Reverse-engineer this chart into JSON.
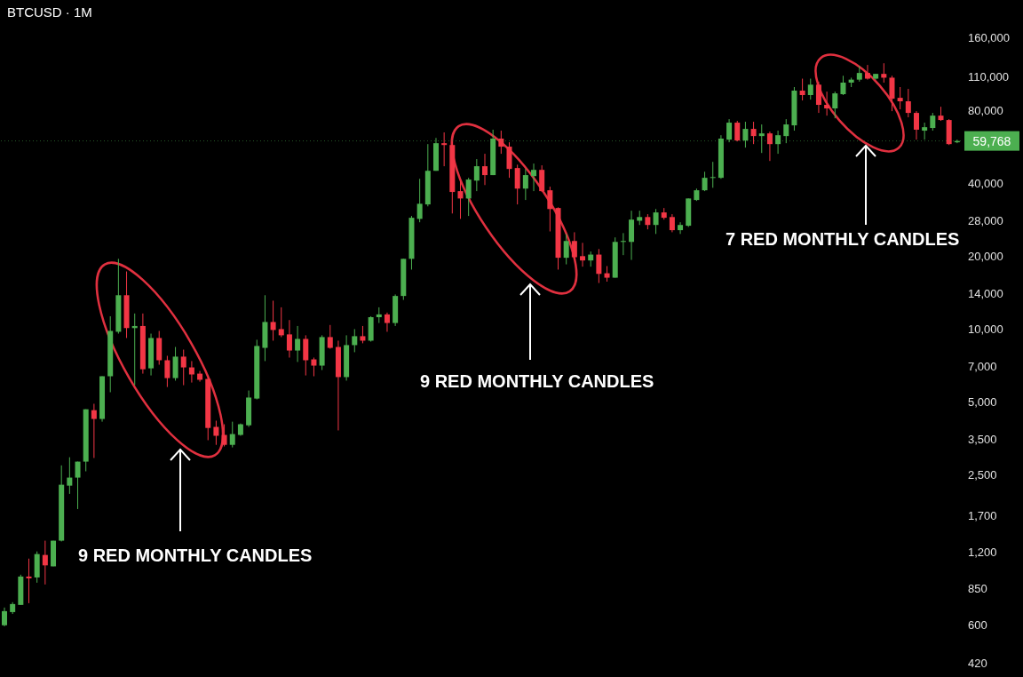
{
  "chart_data": {
    "type": "candlestick",
    "title": "BTCUSD · 1M",
    "annotations": [
      "9 RED MONTHLY CANDLES",
      "9 RED MONTHLY CANDLES",
      "7 RED MONTHLY CANDLES"
    ],
    "categories": [
      null,
      null,
      null,
      null,
      null,
      null,
      null,
      null,
      null,
      null,
      null,
      null,
      null,
      null,
      null,
      null,
      null,
      null,
      null,
      null,
      null,
      null,
      null,
      null,
      null,
      null,
      null,
      null,
      null,
      null,
      null,
      null,
      null,
      null,
      null,
      null,
      null,
      null,
      null,
      null,
      null,
      null,
      null,
      null,
      null,
      null,
      null,
      null,
      null,
      null,
      null,
      null,
      null,
      null,
      null,
      null,
      null,
      null,
      null,
      null,
      null,
      null,
      null,
      null,
      null,
      null,
      null,
      null,
      null,
      null,
      null,
      null,
      null,
      null,
      null,
      null,
      null,
      null,
      null,
      null,
      null,
      null,
      null,
      null,
      null,
      null,
      null,
      null,
      null,
      null,
      null,
      null,
      null,
      null,
      null,
      null,
      null,
      null,
      null,
      null,
      null,
      null,
      null,
      null,
      null,
      null,
      null,
      null,
      null,
      null,
      null,
      null,
      null,
      null,
      null,
      null,
      null,
      null
    ],
    "ohlc": [
      [
        600,
        710,
        594,
        686
      ],
      [
        680,
        747,
        668,
        734
      ],
      [
        728,
        970,
        728,
        953
      ],
      [
        953,
        1130,
        740,
        937
      ],
      [
        945,
        1210,
        899,
        1180
      ],
      [
        1170,
        1340,
        884,
        1060
      ],
      [
        1050,
        1340,
        1050,
        1340
      ],
      [
        1340,
        2740,
        1330,
        2280
      ],
      [
        2260,
        2960,
        2090,
        2440
      ],
      [
        2440,
        2840,
        1810,
        2840
      ],
      [
        2840,
        4670,
        2590,
        4670
      ],
      [
        4630,
        4920,
        2940,
        4260
      ],
      [
        4260,
        6390,
        4150,
        6390
      ],
      [
        6390,
        11300,
        5490,
        9830
      ],
      [
        9750,
        19500,
        9580,
        13800
      ],
      [
        13800,
        17300,
        9190,
        10100
      ],
      [
        10100,
        11600,
        5870,
        10300
      ],
      [
        10300,
        11600,
        6550,
        6830
      ],
      [
        6890,
        9580,
        6440,
        9190
      ],
      [
        9190,
        9830,
        7130,
        7440
      ],
      [
        7440,
        7760,
        5770,
        6280
      ],
      [
        6280,
        8440,
        6130,
        7700
      ],
      [
        7700,
        8230,
        5870,
        6950
      ],
      [
        6950,
        7380,
        6020,
        6500
      ],
      [
        6550,
        6720,
        6070,
        6180
      ],
      [
        6230,
        6440,
        3480,
        3910
      ],
      [
        3950,
        4190,
        3330,
        3630
      ],
      [
        3660,
        4050,
        3280,
        3330
      ],
      [
        3330,
        4150,
        3250,
        3690
      ],
      [
        3660,
        4080,
        3630,
        4050
      ],
      [
        4010,
        5580,
        3950,
        5220
      ],
      [
        5170,
        9040,
        5130,
        8520
      ],
      [
        8370,
        13800,
        7380,
        10700
      ],
      [
        10700,
        13100,
        8960,
        9920
      ],
      [
        10000,
        12300,
        9270,
        9430
      ],
      [
        9510,
        10900,
        7630,
        8160
      ],
      [
        8160,
        10300,
        7320,
        9110
      ],
      [
        9110,
        9430,
        6440,
        7440
      ],
      [
        7500,
        7630,
        6390,
        7070
      ],
      [
        7070,
        9430,
        6780,
        9270
      ],
      [
        9270,
        10400,
        8300,
        8370
      ],
      [
        8440,
        8960,
        3820,
        6340
      ],
      [
        6340,
        9430,
        6130,
        8590
      ],
      [
        8590,
        10000,
        8030,
        9350
      ],
      [
        9350,
        10300,
        8740,
        8960
      ],
      [
        8960,
        11300,
        8880,
        11200
      ],
      [
        11200,
        12300,
        10600,
        11500
      ],
      [
        11500,
        11700,
        9750,
        10600
      ],
      [
        10600,
        13900,
        10300,
        13700
      ],
      [
        13700,
        19500,
        13200,
        19500
      ],
      [
        19500,
        29300,
        17600,
        28800
      ],
      [
        28500,
        41700,
        27600,
        32900
      ],
      [
        32700,
        58000,
        32100,
        45000
      ],
      [
        45000,
        61500,
        45000,
        58500
      ],
      [
        58500,
        64800,
        47000,
        57500
      ],
      [
        57500,
        59500,
        30000,
        36800
      ],
      [
        37100,
        41000,
        28500,
        34600
      ],
      [
        34600,
        42100,
        29300,
        41400
      ],
      [
        41000,
        50300,
        37100,
        47000
      ],
      [
        47000,
        52900,
        39300,
        43200
      ],
      [
        43200,
        66500,
        43200,
        61100
      ],
      [
        61100,
        65900,
        52900,
        56600
      ],
      [
        56600,
        59000,
        42100,
        45800
      ],
      [
        46200,
        47700,
        32700,
        38000
      ],
      [
        38000,
        45800,
        34100,
        43200
      ],
      [
        42800,
        48200,
        37100,
        45400
      ],
      [
        45400,
        47400,
        36800,
        37100
      ],
      [
        37400,
        38700,
        25300,
        31300
      ],
      [
        31600,
        31800,
        17600,
        19700
      ],
      [
        19700,
        24700,
        18500,
        23100
      ],
      [
        23100,
        25100,
        19200,
        19800
      ],
      [
        20000,
        22700,
        18100,
        19200
      ],
      [
        19200,
        20900,
        18100,
        20300
      ],
      [
        20300,
        21400,
        15500,
        16900
      ],
      [
        17000,
        18200,
        15700,
        16300
      ],
      [
        16300,
        23900,
        16300,
        22900
      ],
      [
        22900,
        24900,
        20200,
        23100
      ],
      [
        22900,
        30800,
        19300,
        28300
      ],
      [
        28000,
        30800,
        26900,
        29000
      ],
      [
        29000,
        29800,
        25800,
        26900
      ],
      [
        26900,
        31300,
        24700,
        30300
      ],
      [
        30300,
        31600,
        28300,
        28800
      ],
      [
        29000,
        29800,
        25100,
        25600
      ],
      [
        25600,
        27600,
        24700,
        26900
      ],
      [
        26700,
        34600,
        26400,
        34600
      ],
      [
        34100,
        38000,
        33800,
        37400
      ],
      [
        37400,
        44600,
        37100,
        42100
      ],
      [
        42100,
        49000,
        38300,
        42400
      ],
      [
        42100,
        63100,
        41700,
        61100
      ],
      [
        60500,
        73500,
        59000,
        71100
      ],
      [
        71100,
        72300,
        59500,
        60000
      ],
      [
        60000,
        71700,
        56100,
        67000
      ],
      [
        67000,
        71700,
        58000,
        62600
      ],
      [
        62600,
        69900,
        53300,
        64200
      ],
      [
        64200,
        65300,
        49400,
        58000
      ],
      [
        58000,
        65900,
        52900,
        63100
      ],
      [
        62600,
        73500,
        58500,
        69900
      ],
      [
        69300,
        99700,
        65900,
        96400
      ],
      [
        96400,
        108000,
        87800,
        92400
      ],
      [
        92400,
        108000,
        88500,
        102000
      ],
      [
        102000,
        105000,
        78000,
        84200
      ],
      [
        84200,
        95500,
        76000,
        81400
      ],
      [
        81400,
        95500,
        74100,
        93900
      ],
      [
        93200,
        111000,
        92400,
        104000
      ],
      [
        104000,
        109000,
        99700,
        107000
      ],
      [
        107000,
        122000,
        105000,
        114000
      ],
      [
        114000,
        123000,
        107000,
        108000
      ],
      [
        108000,
        113000,
        107000,
        113000
      ],
      [
        113000,
        125000,
        104000,
        109000
      ],
      [
        109000,
        111000,
        79300,
        89300
      ],
      [
        90000,
        99700,
        80700,
        87100
      ],
      [
        87100,
        98000,
        74800,
        78000
      ],
      [
        78000,
        79300,
        60500,
        66500
      ],
      [
        65900,
        71100,
        60500,
        68100
      ],
      [
        67600,
        78000,
        65900,
        76000
      ],
      [
        76000,
        82700,
        72300,
        72900
      ],
      [
        72900,
        73500,
        57500,
        58000
      ],
      [
        59000,
        60500,
        58500,
        59768
      ]
    ],
    "colors": [
      "#4caf50",
      "#4caf50",
      "#4caf50",
      "#f23645",
      "#4caf50",
      "#f23645",
      "#4caf50",
      "#4caf50",
      "#4caf50",
      "#4caf50",
      "#4caf50",
      "#f23645",
      "#4caf50",
      "#4caf50",
      "#4caf50",
      "#f23645",
      "#4caf50",
      "#f23645",
      "#4caf50",
      "#f23645",
      "#f23645",
      "#4caf50",
      "#f23645",
      "#f23645",
      "#f23645",
      "#f23645",
      "#f23645",
      "#f23645",
      "#4caf50",
      "#4caf50",
      "#4caf50",
      "#4caf50",
      "#4caf50",
      "#f23645",
      "#f23645",
      "#f23645",
      "#4caf50",
      "#f23645",
      "#f23645",
      "#4caf50",
      "#f23645",
      "#f23645",
      "#4caf50",
      "#4caf50",
      "#f23645",
      "#4caf50",
      "#4caf50",
      "#f23645",
      "#4caf50",
      "#4caf50",
      "#4caf50",
      "#4caf50",
      "#4caf50",
      "#4caf50",
      "#f23645",
      "#f23645",
      "#f23645",
      "#4caf50",
      "#4caf50",
      "#f23645",
      "#4caf50",
      "#f23645",
      "#f23645",
      "#f23645",
      "#4caf50",
      "#4caf50",
      "#f23645",
      "#f23645",
      "#f23645",
      "#4caf50",
      "#f23645",
      "#f23645",
      "#4caf50",
      "#f23645",
      "#f23645",
      "#4caf50",
      "#4caf50",
      "#4caf50",
      "#4caf50",
      "#f23645",
      "#4caf50",
      "#f23645",
      "#f23645",
      "#4caf50",
      "#4caf50",
      "#4caf50",
      "#4caf50",
      "#4caf50",
      "#4caf50",
      "#4caf50",
      "#f23645",
      "#4caf50",
      "#f23645",
      "#4caf50",
      "#f23645",
      "#4caf50",
      "#4caf50",
      "#4caf50",
      "#f23645",
      "#4caf50",
      "#f23645",
      "#f23645",
      "#4caf50",
      "#4caf50",
      "#4caf50",
      "#4caf50",
      "#f23645",
      "#4caf50",
      "#f23645",
      "#f23645",
      "#f23645",
      "#f23645",
      "#f23645",
      "#4caf50",
      "#4caf50",
      "#f23645",
      "#f23645",
      "#4caf50"
    ],
    "log": "y",
    "ylim": [
      367,
      228000
    ],
    "yticks": [
      {
        "value": 160000,
        "label": "160,000"
      },
      {
        "value": 110000,
        "label": "110,000"
      },
      {
        "value": 80000,
        "label": "80,000"
      },
      {
        "value": 40000,
        "label": "40,000"
      },
      {
        "value": 28000,
        "label": "28,000"
      },
      {
        "value": 20000,
        "label": "20,000"
      },
      {
        "value": 14000,
        "label": "14,000"
      },
      {
        "value": 10000,
        "label": "10,000"
      },
      {
        "value": 7000,
        "label": "7,000"
      },
      {
        "value": 5000,
        "label": "5,000"
      },
      {
        "value": 3500,
        "label": "3,500"
      },
      {
        "value": 2500,
        "label": "2,500"
      },
      {
        "value": 1700,
        "label": "1,700"
      },
      {
        "value": 1200,
        "label": "1,200"
      },
      {
        "value": 850,
        "label": "850"
      },
      {
        "value": 600,
        "label": "600"
      },
      {
        "value": 420,
        "label": "420"
      }
    ],
    "tick_labels": "y",
    "ref_lines": [
      {
        "axis": "y",
        "value": 59768,
        "label": "59,768",
        "color": "#4caf50",
        "line_style": "dotted"
      }
    ]
  }
}
